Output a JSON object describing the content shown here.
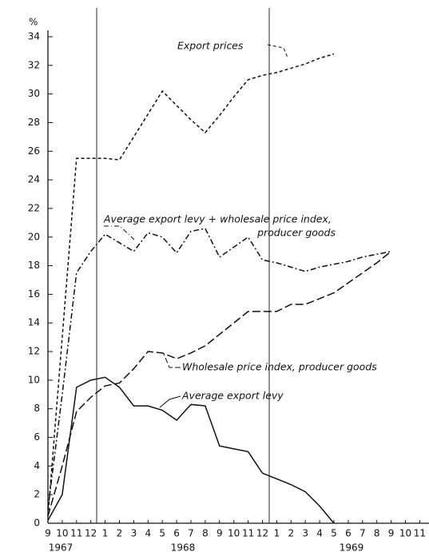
{
  "chart_data": {
    "type": "line",
    "y_label": "%",
    "categories": [
      "9",
      "10",
      "11",
      "12",
      "1",
      "2",
      "3",
      "4",
      "5",
      "6",
      "7",
      "8",
      "9",
      "10",
      "11",
      "12",
      "1",
      "2",
      "3",
      "4",
      "5",
      "6",
      "7",
      "8",
      "9",
      "10",
      "11"
    ],
    "years": [
      "1967",
      "1968",
      "1969"
    ],
    "ylim": [
      0,
      34
    ],
    "yticks": [
      0,
      2,
      4,
      6,
      8,
      10,
      12,
      14,
      16,
      18,
      20,
      22,
      24,
      26,
      28,
      30,
      32,
      34
    ],
    "series": [
      {
        "name": "Export prices",
        "color": "#111111",
        "linestyle": "dashed",
        "values": [
          0.5,
          13,
          25.5,
          25.5,
          25.5,
          25.4,
          27,
          28.6,
          30.2,
          29.2,
          28.2,
          27.3,
          28.5,
          29.8,
          31,
          31.3,
          31.5,
          31.8,
          32.1,
          32.5,
          32.8,
          null,
          null,
          null,
          null,
          null,
          null
        ]
      },
      {
        "name": "Average export levy + wholesale price index,",
        "name_line2": "producer goods",
        "color": "#111111",
        "linestyle": "dashdot",
        "values": [
          1.0,
          9,
          17.5,
          19,
          20.2,
          19.6,
          19,
          20.3,
          20,
          18.9,
          20.4,
          20.6,
          18.6,
          19.3,
          20,
          18.4,
          18.2,
          17.9,
          17.6,
          17.9,
          18.1,
          18.3,
          18.6,
          18.8,
          19.0,
          null,
          null
        ]
      },
      {
        "name": "Wholesale price index, producer goods",
        "color": "#111111",
        "linestyle": "longdash",
        "values": [
          0.5,
          4,
          7.8,
          8.8,
          9.6,
          9.8,
          10.8,
          12,
          11.9,
          11.5,
          11.9,
          12.4,
          13.2,
          14,
          14.8,
          14.8,
          14.8,
          15.3,
          15.3,
          15.7,
          16.1,
          16.8,
          17.5,
          18.2,
          19.0,
          null,
          null
        ]
      },
      {
        "name": "Average export levy",
        "color": "#111111",
        "linestyle": "solid",
        "values": [
          0.2,
          2,
          9.5,
          10,
          10.2,
          9.5,
          8.2,
          8.2,
          7.9,
          7.2,
          8.3,
          8.2,
          5.4,
          5.2,
          5.0,
          3.5,
          3.1,
          2.7,
          2.2,
          1.2,
          0,
          null,
          null,
          null,
          null,
          null,
          null
        ]
      }
    ]
  }
}
